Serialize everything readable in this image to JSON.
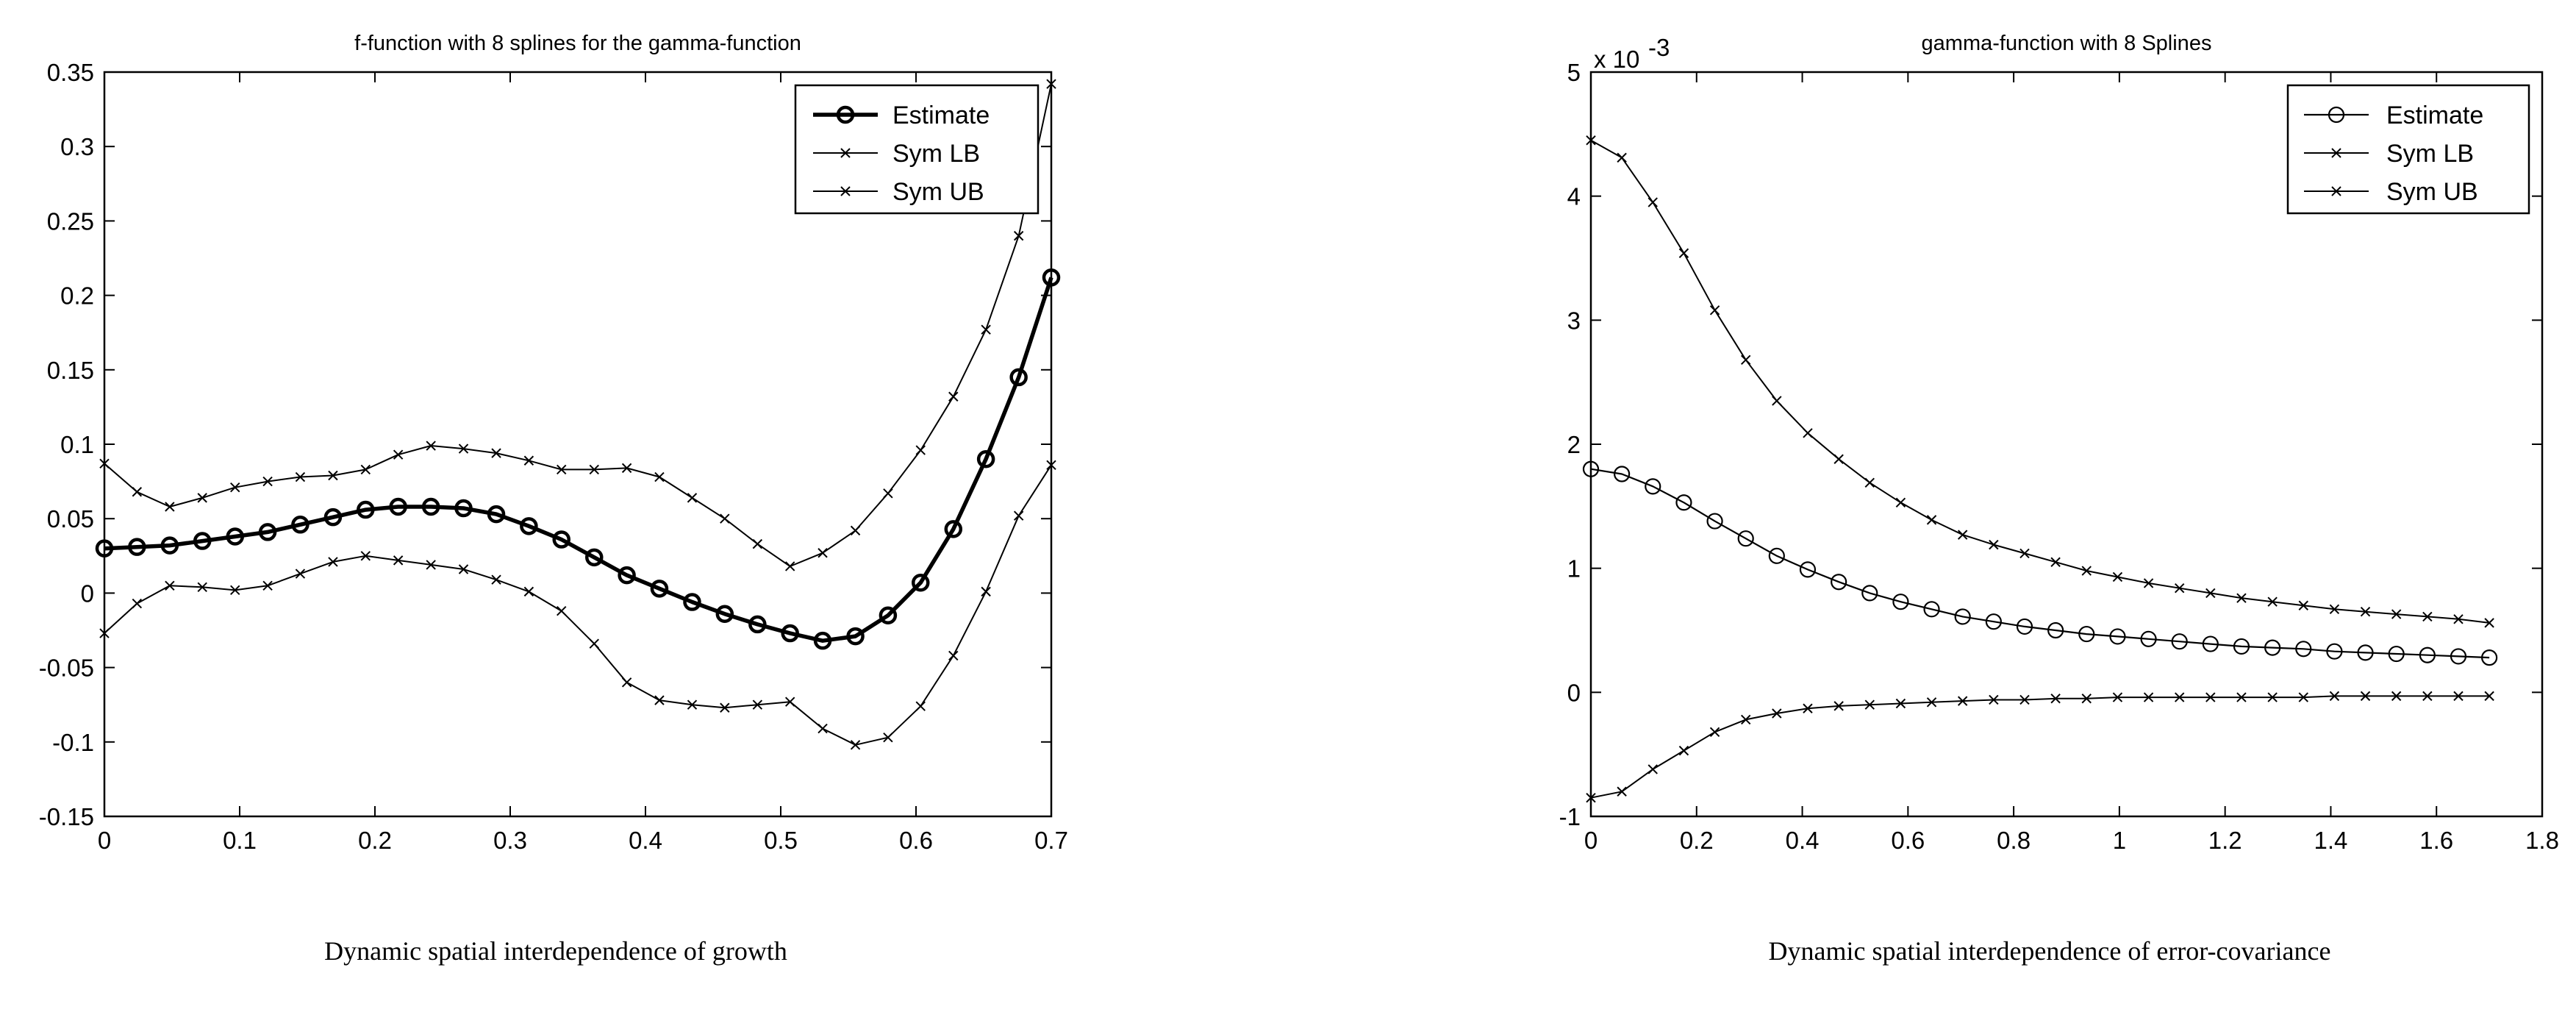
{
  "chart_data": [
    {
      "type": "line",
      "title": "f-function with 8 splines for the gamma-function",
      "xlabel": "",
      "ylabel": "",
      "xlim": [
        0,
        0.7
      ],
      "ylim": [
        -0.15,
        0.35
      ],
      "xticks": [
        "0",
        "0.1",
        "0.2",
        "0.3",
        "0.4",
        "0.5",
        "0.6",
        "0.7"
      ],
      "yticks": [
        "-0.15",
        "-0.1",
        "-0.05",
        "0",
        "0.05",
        "0.1",
        "0.15",
        "0.2",
        "0.25",
        "0.3",
        "0.35"
      ],
      "legend_position": "top-right",
      "x": [
        0,
        0.0241,
        0.0483,
        0.0724,
        0.0966,
        0.1207,
        0.1448,
        0.169,
        0.1931,
        0.2172,
        0.2414,
        0.2655,
        0.2897,
        0.3138,
        0.3379,
        0.3621,
        0.3862,
        0.4103,
        0.4345,
        0.4586,
        0.4828,
        0.5069,
        0.531,
        0.5552,
        0.5793,
        0.6034,
        0.6276,
        0.6517,
        0.6759,
        0.7
      ],
      "series": [
        {
          "name": "Estimate",
          "marker": "o",
          "values": [
            0.03,
            0.031,
            0.032,
            0.035,
            0.038,
            0.041,
            0.046,
            0.051,
            0.056,
            0.058,
            0.058,
            0.057,
            0.053,
            0.045,
            0.036,
            0.024,
            0.012,
            0.003,
            -0.006,
            -0.014,
            -0.021,
            -0.027,
            -0.032,
            -0.029,
            -0.015,
            0.007,
            0.043,
            0.09,
            0.145,
            0.212
          ]
        },
        {
          "name": "Sym LB",
          "marker": "x",
          "values": [
            -0.027,
            -0.007,
            0.005,
            0.004,
            0.002,
            0.005,
            0.013,
            0.021,
            0.025,
            0.022,
            0.019,
            0.016,
            0.009,
            0.001,
            -0.012,
            -0.034,
            -0.06,
            -0.072,
            -0.075,
            -0.077,
            -0.075,
            -0.073,
            -0.091,
            -0.102,
            -0.097,
            -0.076,
            -0.042,
            0.001,
            0.052,
            0.086
          ]
        },
        {
          "name": "Sym UB",
          "marker": "x",
          "values": [
            0.087,
            0.068,
            0.058,
            0.064,
            0.071,
            0.075,
            0.078,
            0.079,
            0.083,
            0.093,
            0.099,
            0.097,
            0.094,
            0.089,
            0.083,
            0.083,
            0.084,
            0.078,
            0.064,
            0.05,
            0.033,
            0.018,
            0.027,
            0.042,
            0.067,
            0.096,
            0.132,
            0.177,
            0.24,
            0.342
          ]
        }
      ]
    },
    {
      "type": "line",
      "title": "gamma-function with 8 Splines",
      "xlabel": "",
      "ylabel": "",
      "y_scale_label": "x 10",
      "y_scale_exponent": "-3",
      "xlim": [
        0,
        1.8
      ],
      "ylim": [
        -1,
        5
      ],
      "xticks": [
        "0",
        "0.2",
        "0.4",
        "0.6",
        "0.8",
        "1",
        "1.2",
        "1.4",
        "1.6",
        "1.8"
      ],
      "yticks": [
        "-1",
        "0",
        "1",
        "2",
        "3",
        "4",
        "5"
      ],
      "legend_position": "top-right",
      "x": [
        0,
        0.0586,
        0.1172,
        0.1759,
        0.2345,
        0.2931,
        0.3517,
        0.4103,
        0.469,
        0.5276,
        0.5862,
        0.6448,
        0.7034,
        0.7621,
        0.8207,
        0.8793,
        0.9379,
        0.9966,
        1.0552,
        1.1138,
        1.1724,
        1.231,
        1.2897,
        1.3483,
        1.4069,
        1.4655,
        1.5241,
        1.5828,
        1.6414,
        1.7
      ],
      "series": [
        {
          "name": "Estimate",
          "marker": "o",
          "values": [
            1.8,
            1.76,
            1.66,
            1.53,
            1.38,
            1.24,
            1.1,
            0.99,
            0.89,
            0.8,
            0.73,
            0.67,
            0.61,
            0.57,
            0.53,
            0.5,
            0.47,
            0.45,
            0.43,
            0.41,
            0.39,
            0.37,
            0.36,
            0.35,
            0.33,
            0.32,
            0.31,
            0.3,
            0.29,
            0.28
          ]
        },
        {
          "name": "Sym LB",
          "marker": "x",
          "values": [
            -0.85,
            -0.8,
            -0.62,
            -0.47,
            -0.32,
            -0.22,
            -0.17,
            -0.13,
            -0.11,
            -0.1,
            -0.09,
            -0.08,
            -0.07,
            -0.06,
            -0.06,
            -0.05,
            -0.05,
            -0.04,
            -0.04,
            -0.04,
            -0.04,
            -0.04,
            -0.04,
            -0.04,
            -0.03,
            -0.03,
            -0.03,
            -0.03,
            -0.03,
            -0.03
          ]
        },
        {
          "name": "Sym UB",
          "marker": "x",
          "values": [
            4.45,
            4.31,
            3.95,
            3.54,
            3.08,
            2.68,
            2.35,
            2.09,
            1.88,
            1.69,
            1.53,
            1.39,
            1.27,
            1.19,
            1.12,
            1.05,
            0.98,
            0.93,
            0.88,
            0.84,
            0.8,
            0.76,
            0.73,
            0.7,
            0.67,
            0.65,
            0.63,
            0.61,
            0.59,
            0.56
          ]
        }
      ]
    }
  ],
  "captions": {
    "left": "Dynamic spatial interdependence of growth",
    "right": "Dynamic spatial interdependence of error-covariance"
  }
}
